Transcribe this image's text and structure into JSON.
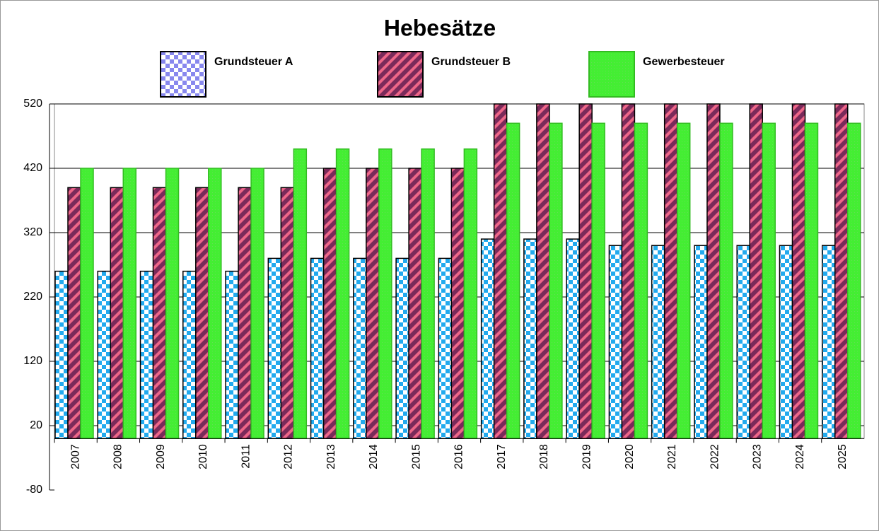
{
  "chart_data": {
    "type": "bar",
    "title": "Hebesätze",
    "categories": [
      "2007",
      "2008",
      "2009",
      "2010",
      "2011",
      "2012",
      "2013",
      "2014",
      "2015",
      "2016",
      "2017",
      "2018",
      "2019",
      "2020",
      "2021",
      "2022",
      "2023",
      "2024",
      "2025"
    ],
    "series": [
      {
        "name": "Grundsteuer A",
        "color": "#22aaee",
        "values": [
          260,
          260,
          260,
          260,
          260,
          280,
          280,
          280,
          280,
          280,
          310,
          310,
          310,
          300,
          300,
          300,
          300,
          300,
          300
        ]
      },
      {
        "name": "Grundsteuer B",
        "color": "#7a2a5a",
        "values": [
          390,
          390,
          390,
          390,
          390,
          390,
          420,
          420,
          420,
          420,
          520,
          520,
          520,
          520,
          520,
          520,
          520,
          520,
          520
        ]
      },
      {
        "name": "Gewerbesteuer",
        "color": "#44ee33",
        "values": [
          420,
          420,
          420,
          420,
          420,
          450,
          450,
          450,
          450,
          450,
          490,
          490,
          490,
          490,
          490,
          490,
          490,
          490,
          490
        ]
      }
    ],
    "ylim": [
      -80,
      520
    ],
    "yticks": [
      -80,
      20,
      120,
      220,
      320,
      420,
      520
    ],
    "grid": true
  }
}
